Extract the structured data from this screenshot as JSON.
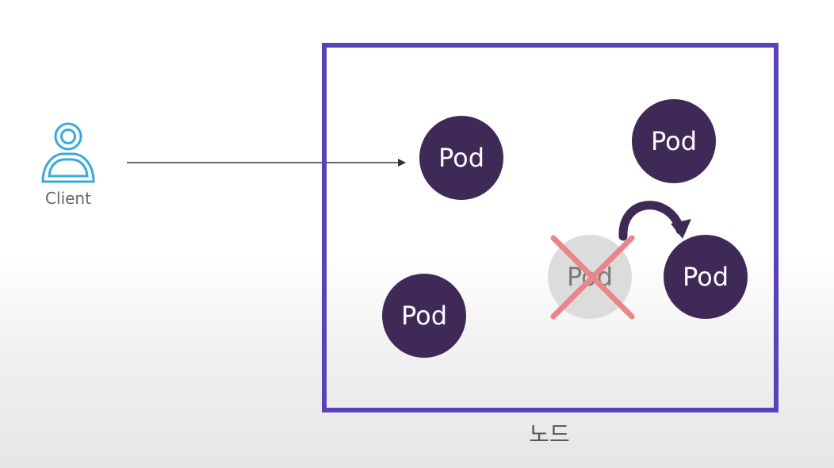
{
  "client": {
    "label": "Client",
    "icon": "user-icon",
    "icon_color": "#3aa8dc"
  },
  "node": {
    "label": "노드",
    "border_color": "#5b41b7"
  },
  "pods": [
    {
      "label": "Pod",
      "status": "running"
    },
    {
      "label": "Pod",
      "status": "running"
    },
    {
      "label": "Pod",
      "status": "running"
    },
    {
      "label": "Pod",
      "status": "deleted"
    },
    {
      "label": "Pod",
      "status": "running"
    }
  ],
  "colors": {
    "pod_fill": "#3f2a57",
    "pod_text": "#ffffff",
    "deleted_pod_fill": "#dcdcdc",
    "cross_color": "#e9868a"
  }
}
